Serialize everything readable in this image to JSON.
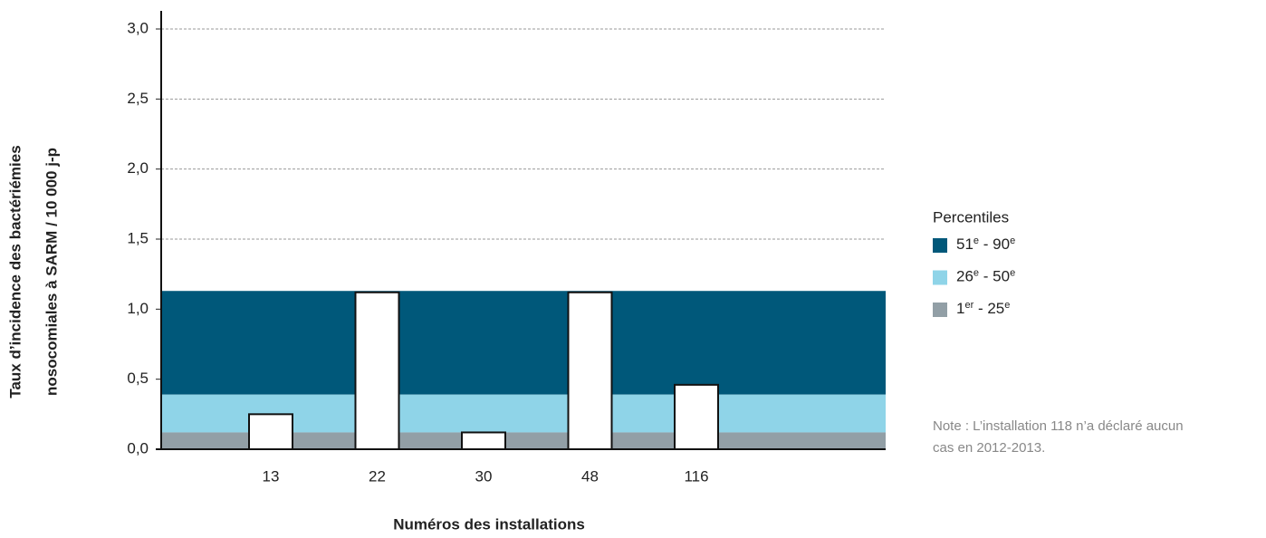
{
  "chart_data": {
    "type": "bar",
    "y_label": [
      "Taux d’incidence des bactériémies",
      "nosocomiales à SARM / 10 000 j-p"
    ],
    "x_label": "Numéros des installations",
    "categories": [
      "13",
      "22",
      "30",
      "48",
      "116"
    ],
    "values": [
      0.25,
      1.12,
      0.12,
      1.12,
      0.46
    ],
    "ylim": [
      0,
      3
    ],
    "yticks": [
      {
        "value": 0,
        "label": "0,0"
      },
      {
        "value": 0.5,
        "label": "0,5"
      },
      {
        "value": 1,
        "label": "1,0"
      },
      {
        "value": 1.5,
        "label": "1,5"
      },
      {
        "value": 2,
        "label": "2,0"
      },
      {
        "value": 2.5,
        "label": "2,5"
      },
      {
        "value": 3,
        "label": "3,0"
      }
    ],
    "grid": true,
    "legend_title": "Percentiles",
    "bands": [
      {
        "name": [
          "51",
          "e",
          " - 90",
          "e"
        ],
        "color": "#00587a",
        "from": 0.39,
        "to": 1.13
      },
      {
        "name": [
          "26",
          "e",
          " - 50",
          "e"
        ],
        "color": "#8fd4e8",
        "from": 0.12,
        "to": 0.39
      },
      {
        "name": [
          "1",
          "er",
          " - 25",
          "e"
        ],
        "color": "#929fa6",
        "from": 0,
        "to": 0.12
      }
    ],
    "note": [
      "Note : L’installation 118 n’a déclaré aucun",
      "cas en 2012-2013."
    ]
  }
}
